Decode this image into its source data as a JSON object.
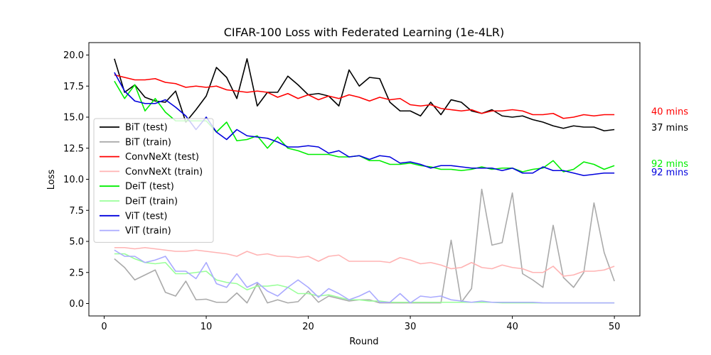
{
  "chart_data": {
    "type": "line",
    "title": "CIFAR-100 Loss with Federated Learning (1e-4LR)",
    "xlabel": "Round",
    "ylabel": "Loss",
    "xlim": [
      -1.5,
      52.5
    ],
    "ylim": [
      -1.0,
      21.0
    ],
    "xticks": [
      0,
      10,
      20,
      30,
      40,
      50
    ],
    "yticks": [
      0.0,
      2.5,
      5.0,
      7.5,
      10.0,
      12.5,
      15.0,
      17.5,
      20.0
    ],
    "ytick_labels": [
      "0.0",
      "2.5",
      "5.0",
      "7.5",
      "10.0",
      "12.5",
      "15.0",
      "17.5",
      "20.0"
    ],
    "grid": false,
    "legend_position": "center-left",
    "x": [
      1,
      2,
      3,
      4,
      5,
      6,
      7,
      8,
      9,
      10,
      11,
      12,
      13,
      14,
      15,
      16,
      17,
      18,
      19,
      20,
      21,
      22,
      23,
      24,
      25,
      26,
      27,
      28,
      29,
      30,
      31,
      32,
      33,
      34,
      35,
      36,
      37,
      38,
      39,
      40,
      41,
      42,
      43,
      44,
      45,
      46,
      47,
      48,
      49,
      50
    ],
    "series": [
      {
        "name": "BiT (test)",
        "color": "#000000",
        "values": [
          19.7,
          17.0,
          17.6,
          16.6,
          16.3,
          16.2,
          17.1,
          14.6,
          15.6,
          16.7,
          19.0,
          18.2,
          16.5,
          19.7,
          15.9,
          17.0,
          17.0,
          18.3,
          17.6,
          16.8,
          16.9,
          16.7,
          15.9,
          18.8,
          17.5,
          18.2,
          18.1,
          16.2,
          15.5,
          15.5,
          15.1,
          16.2,
          15.2,
          16.4,
          16.2,
          15.5,
          15.3,
          15.6,
          15.1,
          15.0,
          15.1,
          14.8,
          14.6,
          14.3,
          14.1,
          14.3,
          14.2,
          14.2,
          13.9,
          14.0
        ]
      },
      {
        "name": "BiT (train)",
        "color": "#aaaaaa",
        "values": [
          3.6,
          2.9,
          1.9,
          2.3,
          2.7,
          0.9,
          0.6,
          1.8,
          0.3,
          0.35,
          0.1,
          0.1,
          0.85,
          0.05,
          1.6,
          0.05,
          0.3,
          0.05,
          0.15,
          1.0,
          0.1,
          0.6,
          0.4,
          0.2,
          0.3,
          0.3,
          0.05,
          0.05,
          0.05,
          0.05,
          0.05,
          0.05,
          0.05,
          5.1,
          0.1,
          1.2,
          9.2,
          4.7,
          4.9,
          8.9,
          2.4,
          1.9,
          1.3,
          6.3,
          2.1,
          1.3,
          2.5,
          8.1,
          4.1,
          1.8
        ]
      },
      {
        "name": "ConvNeXt (test)",
        "color": "#ff0000",
        "values": [
          18.4,
          18.2,
          18.0,
          18.0,
          18.1,
          17.8,
          17.7,
          17.4,
          17.5,
          17.4,
          17.5,
          17.2,
          17.1,
          17.0,
          17.1,
          17.0,
          16.6,
          16.9,
          16.5,
          16.8,
          16.4,
          16.7,
          16.5,
          16.8,
          16.6,
          16.3,
          16.6,
          16.4,
          16.5,
          16.0,
          15.9,
          16.0,
          15.7,
          15.6,
          15.5,
          15.6,
          15.3,
          15.5,
          15.5,
          15.6,
          15.5,
          15.2,
          15.2,
          15.3,
          14.9,
          15.0,
          15.2,
          15.1,
          15.2,
          15.2
        ]
      },
      {
        "name": "ConvNeXt (train)",
        "color": "#ffb3b3",
        "values": [
          4.5,
          4.5,
          4.4,
          4.5,
          4.4,
          4.3,
          4.2,
          4.2,
          4.3,
          4.2,
          4.1,
          4.0,
          3.8,
          4.2,
          3.9,
          4.0,
          3.8,
          3.8,
          3.7,
          3.8,
          3.4,
          3.8,
          3.9,
          3.4,
          3.4,
          3.4,
          3.4,
          3.3,
          3.7,
          3.5,
          3.2,
          3.3,
          3.1,
          2.8,
          2.9,
          3.3,
          2.9,
          2.8,
          3.1,
          2.9,
          2.8,
          2.5,
          2.5,
          3.0,
          2.2,
          2.3,
          2.6,
          2.6,
          2.7,
          3.0
        ]
      },
      {
        "name": "DeiT (test)",
        "color": "#00ee00",
        "values": [
          17.9,
          16.5,
          17.6,
          15.5,
          16.5,
          15.4,
          14.7,
          14.7,
          14.7,
          14.7,
          13.8,
          14.6,
          13.1,
          13.2,
          13.5,
          12.5,
          13.4,
          12.5,
          12.3,
          12.0,
          12.0,
          12.0,
          11.8,
          11.8,
          11.9,
          11.5,
          11.5,
          11.2,
          11.2,
          11.3,
          11.1,
          11.0,
          10.8,
          10.8,
          10.7,
          10.8,
          11.0,
          10.8,
          10.9,
          10.9,
          10.6,
          10.8,
          10.9,
          11.5,
          10.6,
          10.8,
          11.4,
          11.2,
          10.8,
          11.1
        ]
      },
      {
        "name": "DeiT (train)",
        "color": "#99ff99",
        "values": [
          4.0,
          4.0,
          3.6,
          3.3,
          3.2,
          3.3,
          2.4,
          2.4,
          2.5,
          2.6,
          1.9,
          1.7,
          1.6,
          1.1,
          1.4,
          1.4,
          1.5,
          1.3,
          0.8,
          0.8,
          0.6,
          0.7,
          0.5,
          0.3,
          0.3,
          0.2,
          0.2,
          0.1,
          0.1,
          0.1,
          0.1,
          0.1,
          0.1,
          0.1,
          0.1,
          0.1,
          0.1,
          0.1,
          0.05,
          0.05,
          0.05,
          0.05,
          0.05,
          0.05,
          0.05,
          0.05,
          0.05,
          0.05,
          0.05,
          0.05
        ]
      },
      {
        "name": "ViT (test)",
        "color": "#0000dd",
        "values": [
          18.6,
          17.1,
          16.3,
          16.1,
          16.1,
          16.4,
          15.8,
          15.1,
          14.0,
          15.0,
          13.8,
          13.2,
          14.0,
          13.5,
          13.4,
          13.3,
          13.0,
          12.6,
          12.6,
          12.7,
          12.6,
          12.1,
          12.3,
          11.8,
          11.9,
          11.6,
          11.9,
          11.8,
          11.3,
          11.4,
          11.2,
          10.9,
          11.1,
          11.1,
          11.0,
          10.9,
          10.9,
          10.9,
          10.7,
          10.9,
          10.5,
          10.5,
          11.0,
          10.7,
          10.7,
          10.5,
          10.3,
          10.4,
          10.5,
          10.5
        ]
      },
      {
        "name": "ViT (train)",
        "color": "#aaaaff",
        "values": [
          4.3,
          3.8,
          3.8,
          3.3,
          3.5,
          3.8,
          2.6,
          2.6,
          2.0,
          3.3,
          1.6,
          1.3,
          2.4,
          1.3,
          1.7,
          1.0,
          0.6,
          1.3,
          1.9,
          1.3,
          0.5,
          1.2,
          0.8,
          0.3,
          0.6,
          1.0,
          0.1,
          0.1,
          0.8,
          0.05,
          0.6,
          0.5,
          0.6,
          0.3,
          0.2,
          0.1,
          0.2,
          0.1,
          0.1,
          0.1,
          0.1,
          0.1,
          0.05,
          0.05,
          0.05,
          0.05,
          0.05,
          0.05,
          0.05,
          0.05
        ]
      }
    ],
    "annotations": [
      {
        "text": "40 mins",
        "color": "#ff0000",
        "y": 15.5
      },
      {
        "text": "37 mins",
        "color": "#000000",
        "y": 14.2
      },
      {
        "text": "92 mins",
        "color": "#00ee00",
        "y": 11.3
      },
      {
        "text": "92 mins",
        "color": "#0000dd",
        "y": 10.6
      }
    ]
  }
}
